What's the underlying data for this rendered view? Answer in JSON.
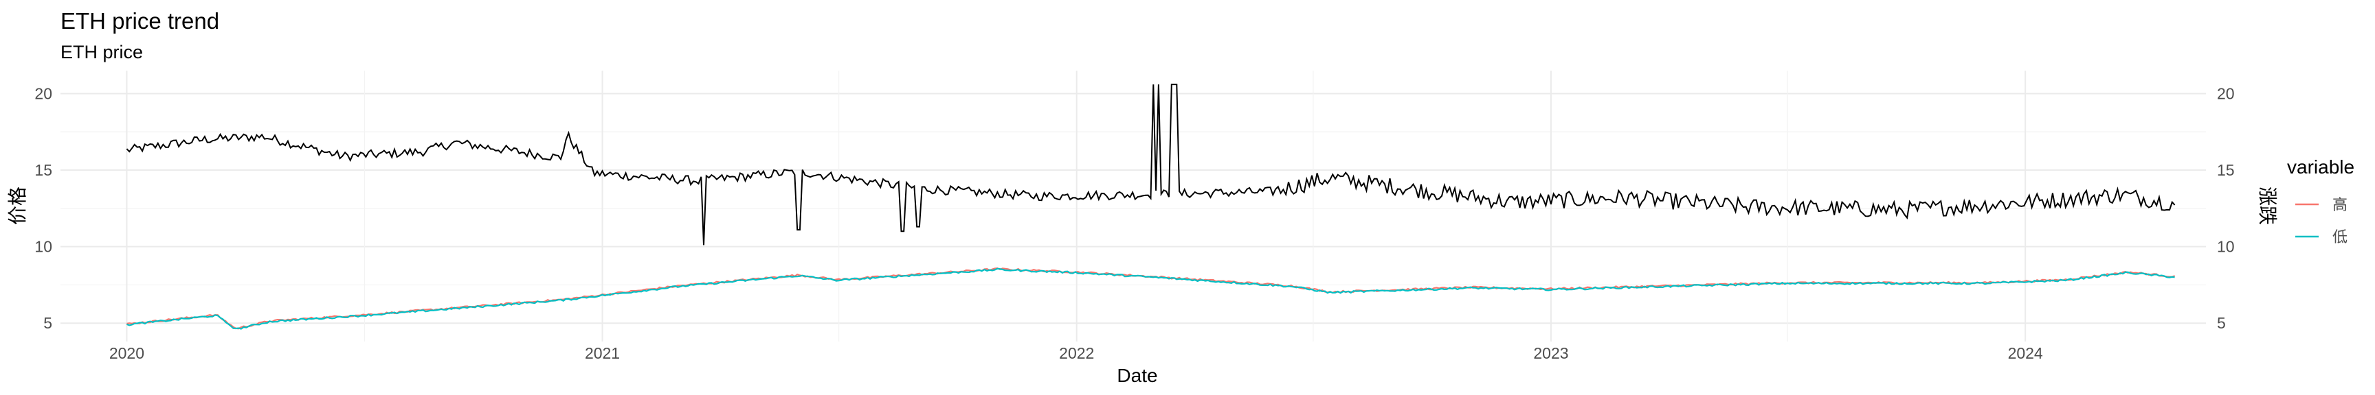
{
  "chart_data": {
    "type": "line",
    "title": "ETH price trend",
    "subtitle": "ETH price",
    "xlabel": "Date",
    "ylabel_left": "价格",
    "ylabel_right": "涨跌",
    "x_range": [
      "2019-11-11",
      "2024-05-19"
    ],
    "x_ticks": [
      "2020",
      "2021",
      "2022",
      "2023",
      "2024"
    ],
    "y_range": [
      3.8,
      21.5
    ],
    "y_ticks": [
      5,
      10,
      15,
      20
    ],
    "grid": true,
    "legend": {
      "title": "variable",
      "position": "right",
      "entries": [
        {
          "label": "高",
          "color": "#F8766D"
        },
        {
          "label": "低",
          "color": "#00BFC4"
        }
      ]
    },
    "series": [
      {
        "color": "#000000",
        "anchors": [
          [
            "2020-01-01",
            16.3
          ],
          [
            "2020-03-01",
            17.0
          ],
          [
            "2020-04-15",
            17.2
          ],
          [
            "2020-06-15",
            15.9
          ],
          [
            "2020-08-15",
            16.2
          ],
          [
            "2020-09-10",
            16.8
          ],
          [
            "2020-11-30",
            15.8
          ],
          [
            "2020-12-05",
            17.3
          ],
          [
            "2020-12-25",
            14.8
          ],
          [
            "2021-03-15",
            14.3
          ],
          [
            "2021-06-01",
            14.9
          ],
          [
            "2021-09-01",
            13.8
          ],
          [
            "2021-12-01",
            13.3
          ],
          [
            "2022-02-25",
            13.4
          ],
          [
            "2022-06-01",
            13.6
          ],
          [
            "2022-07-15",
            14.5
          ],
          [
            "2022-12-01",
            12.9
          ],
          [
            "2023-03-01",
            13.2
          ],
          [
            "2023-06-01",
            12.6
          ],
          [
            "2023-10-01",
            12.4
          ],
          [
            "2024-01-01",
            12.9
          ],
          [
            "2024-03-15",
            13.4
          ],
          [
            "2024-04-25",
            12.8
          ]
        ],
        "spikes": [
          [
            "2021-03-20",
            10.1
          ],
          [
            "2021-06-01",
            11.1
          ],
          [
            "2021-08-20",
            11.0
          ],
          [
            "2021-09-01",
            11.3
          ],
          [
            "2022-03-01",
            20.6
          ],
          [
            "2022-03-05",
            20.6
          ],
          [
            "2022-03-15",
            20.6
          ],
          [
            "2022-03-18",
            20.6
          ]
        ]
      },
      {
        "name": "高",
        "color": "#F8766D",
        "anchors": [
          [
            "2020-01-01",
            4.9
          ],
          [
            "2020-03-10",
            5.5
          ],
          [
            "2020-03-25",
            4.6
          ],
          [
            "2020-04-20",
            5.1
          ],
          [
            "2020-07-01",
            5.5
          ],
          [
            "2020-09-01",
            5.9
          ],
          [
            "2020-12-01",
            6.5
          ],
          [
            "2021-03-01",
            7.4
          ],
          [
            "2021-06-01",
            8.1
          ],
          [
            "2021-07-01",
            7.8
          ],
          [
            "2021-11-01",
            8.5
          ],
          [
            "2022-01-01",
            8.3
          ],
          [
            "2022-03-01",
            8.0
          ],
          [
            "2022-06-15",
            7.4
          ],
          [
            "2022-07-15",
            7.0
          ],
          [
            "2022-11-01",
            7.3
          ],
          [
            "2023-01-01",
            7.2
          ],
          [
            "2023-04-01",
            7.4
          ],
          [
            "2023-07-01",
            7.6
          ],
          [
            "2023-12-01",
            7.6
          ],
          [
            "2024-02-01",
            7.8
          ],
          [
            "2024-03-20",
            8.3
          ],
          [
            "2024-04-25",
            8.0
          ]
        ]
      },
      {
        "name": "低",
        "color": "#00BFC4",
        "anchors": [
          [
            "2020-01-01",
            4.9
          ],
          [
            "2020-03-10",
            5.5
          ],
          [
            "2020-03-25",
            4.6
          ],
          [
            "2020-04-20",
            5.1
          ],
          [
            "2020-07-01",
            5.5
          ],
          [
            "2020-09-01",
            5.9
          ],
          [
            "2020-12-01",
            6.5
          ],
          [
            "2021-03-01",
            7.4
          ],
          [
            "2021-06-01",
            8.1
          ],
          [
            "2021-07-01",
            7.8
          ],
          [
            "2021-11-01",
            8.5
          ],
          [
            "2022-01-01",
            8.3
          ],
          [
            "2022-03-01",
            8.0
          ],
          [
            "2022-06-15",
            7.4
          ],
          [
            "2022-07-15",
            7.0
          ],
          [
            "2022-11-01",
            7.3
          ],
          [
            "2023-01-01",
            7.2
          ],
          [
            "2023-04-01",
            7.4
          ],
          [
            "2023-07-01",
            7.6
          ],
          [
            "2023-12-01",
            7.6
          ],
          [
            "2024-02-01",
            7.8
          ],
          [
            "2024-03-20",
            8.3
          ],
          [
            "2024-04-25",
            8.0
          ]
        ]
      }
    ]
  }
}
